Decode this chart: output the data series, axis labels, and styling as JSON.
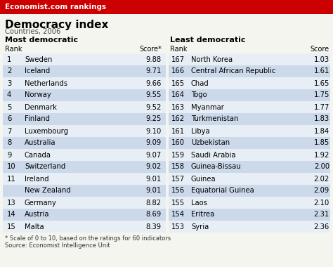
{
  "header_bg": "#cc0000",
  "header_text": "Economist.com rankings",
  "header_text_color": "#ffffff",
  "title": "Democracy index",
  "subtitle": "Countries, 2006",
  "bg_color": "#f5f5f0",
  "row_alt_color": "#ccd9ea",
  "row_base_color": "#e8eef5",
  "most_label": "Most democratic",
  "least_label": "Least democratic",
  "most_democratic": [
    {
      "rank": "1",
      "country": "Sweden",
      "score": "9.88"
    },
    {
      "rank": "2",
      "country": "Iceland",
      "score": "9.71"
    },
    {
      "rank": "3",
      "country": "Netherlands",
      "score": "9.66"
    },
    {
      "rank": "4",
      "country": "Norway",
      "score": "9.55"
    },
    {
      "rank": "5",
      "country": "Denmark",
      "score": "9.52"
    },
    {
      "rank": "6",
      "country": "Finland",
      "score": "9.25"
    },
    {
      "rank": "7",
      "country": "Luxembourg",
      "score": "9.10"
    },
    {
      "rank": "8",
      "country": "Australia",
      "score": "9.09"
    },
    {
      "rank": "9",
      "country": "Canada",
      "score": "9.07"
    },
    {
      "rank": "10",
      "country": "Switzerland",
      "score": "9.02"
    },
    {
      "rank": "11",
      "country": "Ireland",
      "score": "9.01"
    },
    {
      "rank": "",
      "country": "New Zealand",
      "score": "9.01"
    },
    {
      "rank": "13",
      "country": "Germany",
      "score": "8.82"
    },
    {
      "rank": "14",
      "country": "Austria",
      "score": "8.69"
    },
    {
      "rank": "15",
      "country": "Malta",
      "score": "8.39"
    }
  ],
  "least_democratic": [
    {
      "rank": "167",
      "country": "North Korea",
      "score": "1.03"
    },
    {
      "rank": "166",
      "country": "Central African Republic",
      "score": "1.61"
    },
    {
      "rank": "165",
      "country": "Chad",
      "score": "1.65"
    },
    {
      "rank": "164",
      "country": "Togo",
      "score": "1.75"
    },
    {
      "rank": "163",
      "country": "Myanmar",
      "score": "1.77"
    },
    {
      "rank": "162",
      "country": "Turkmenistan",
      "score": "1.83"
    },
    {
      "rank": "161",
      "country": "Libya",
      "score": "1.84"
    },
    {
      "rank": "160",
      "country": "Uzbekistan",
      "score": "1.85"
    },
    {
      "rank": "159",
      "country": "Saudi Arabia",
      "score": "1.92"
    },
    {
      "rank": "158",
      "country": "Guinea-Bissau",
      "score": "2.00"
    },
    {
      "rank": "157",
      "country": "Guinea",
      "score": "2.02"
    },
    {
      "rank": "156",
      "country": "Equatorial Guinea",
      "score": "2.09"
    },
    {
      "rank": "155",
      "country": "Laos",
      "score": "2.10"
    },
    {
      "rank": "154",
      "country": "Eritrea",
      "score": "2.31"
    },
    {
      "rank": "153",
      "country": "Syria",
      "score": "2.36"
    }
  ],
  "footnote_line1": "* Scale of 0 to 10, based on the ratings for 60 indicators",
  "footnote_line2": "Source: Economist Intelligence Unit"
}
